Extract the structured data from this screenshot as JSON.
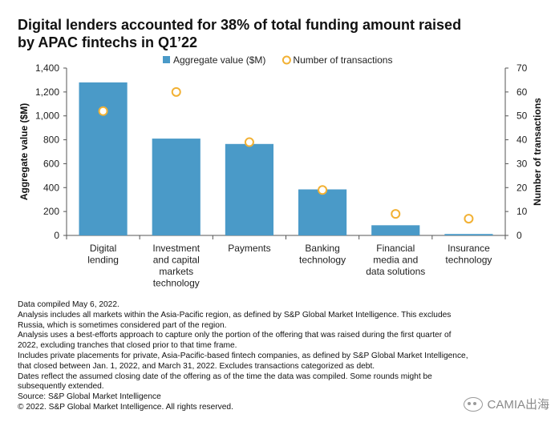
{
  "title_lines": [
    "Digital lenders accounted for 38% of total funding amount raised",
    "by APAC fintechs in Q1’22"
  ],
  "chart_data": {
    "type": "bar",
    "categories": [
      [
        "Digital",
        "lending"
      ],
      [
        "Investment",
        "and capital",
        "markets",
        "technology"
      ],
      [
        "Payments"
      ],
      [
        "Banking",
        "technology"
      ],
      [
        "Financial",
        "media and",
        "data solutions"
      ],
      [
        "Insurance",
        "technology"
      ]
    ],
    "series": [
      {
        "name": "Aggregate value ($M)",
        "type": "bar",
        "axis": "left",
        "values": [
          1280,
          810,
          765,
          385,
          85,
          12
        ]
      },
      {
        "name": "Number of transactions",
        "type": "scatter",
        "axis": "right",
        "values": [
          52,
          60,
          39,
          19,
          9,
          7
        ]
      }
    ],
    "ylabel": "Aggregate value ($M)",
    "y2label": "Number of transactions",
    "ylim": [
      0,
      1400
    ],
    "y2lim": [
      0,
      70
    ],
    "yticks": [
      "0",
      "200",
      "400",
      "600",
      "800",
      "1,000",
      "1,200",
      "1,400"
    ],
    "y2ticks": [
      "0",
      "10",
      "20",
      "30",
      "40",
      "50",
      "60",
      "70"
    ],
    "grid": false,
    "legend_position": "top-center",
    "colors": {
      "bar": "#4a9ac8",
      "marker": "#f2b134",
      "axis": "#555555"
    }
  },
  "notes": [
    "Data compiled May 6, 2022.",
    "Analysis includes all markets within the Asia-Pacific region, as defined by S&P Global Market Intelligence. This excludes",
    "Russia, which is sometimes considered part of the region.",
    "Analysis uses a best-efforts approach to capture only the portion of the offering that was raised during the first quarter of",
    "2022, excluding tranches that closed prior to that time frame.",
    "Includes private placements for private, Asia-Pacific-based fintech companies, as defined by S&P Global Market Intelligence,",
    "that closed between Jan. 1, 2022, and March 31, 2022. Excludes transactions categorized as debt.",
    "Dates reflect the assumed closing date of the offering as of the time the data was compiled. Some rounds might be",
    "subsequently extended.",
    "Source: S&P Global Market Intelligence",
    "© 2022. S&P Global Market Intelligence. All rights reserved."
  ],
  "watermark": {
    "text": "CAMIA出海",
    "icon": "wechat-icon"
  }
}
